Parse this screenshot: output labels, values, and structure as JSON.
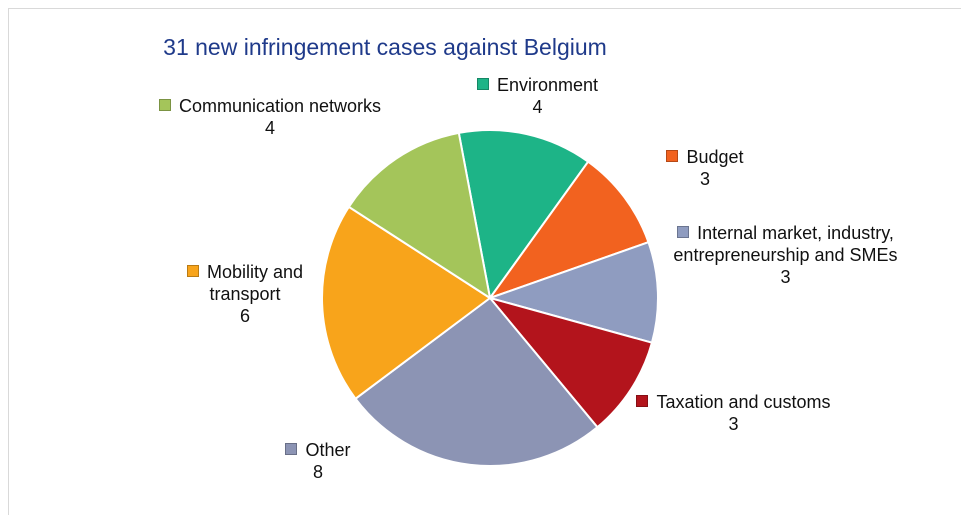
{
  "chart_data": {
    "type": "pie",
    "title": "31 new infringement cases against Belgium",
    "categories": [
      "Environment",
      "Budget",
      "Internal market, industry, entrepreneurship and SMEs",
      "Taxation and customs",
      "Other",
      "Mobility and transport",
      "Communication networks"
    ],
    "values": [
      4,
      3,
      3,
      3,
      8,
      6,
      4
    ],
    "colors": [
      "#1db487",
      "#f2621f",
      "#8f9cc0",
      "#b3141c",
      "#8c94b4",
      "#f8a41b",
      "#a4c55a"
    ]
  }
}
